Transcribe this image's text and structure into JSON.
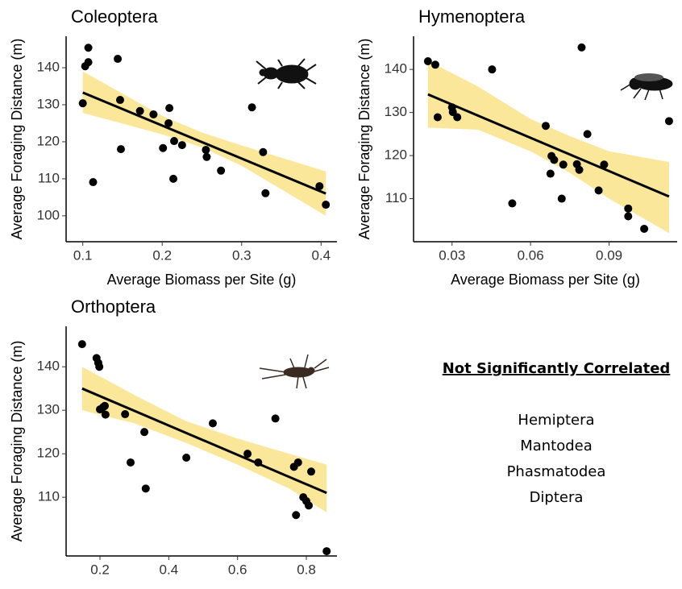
{
  "chart_data": [
    {
      "type": "scatter",
      "title": "Coleoptera",
      "x_label": "Average Biomass per Site (g)",
      "y_label": "Average Foraging Distance (m)",
      "x": [
        0.1,
        0.103,
        0.107,
        0.107,
        0.113,
        0.144,
        0.147,
        0.148,
        0.172,
        0.189,
        0.201,
        0.208,
        0.209,
        0.215,
        0.214,
        0.225,
        0.255,
        0.256,
        0.274,
        0.313,
        0.327,
        0.33,
        0.398,
        0.406
      ],
      "values": [
        130.4,
        140.4,
        145.4,
        141.5,
        109.1,
        142.4,
        131.3,
        118,
        128.3,
        127.4,
        118.3,
        125,
        129.1,
        120.2,
        110,
        119.1,
        117.8,
        115.9,
        112.2,
        129.3,
        117.2,
        106.1,
        108,
        103
      ],
      "color": "#000000",
      "fit": {
        "x": [
          0.1,
          0.406
        ],
        "values": [
          133.3,
          106
        ],
        "color": "#000000"
      },
      "band": {
        "x": [
          0.1,
          0.2,
          0.25,
          0.3,
          0.406
        ],
        "lower": [
          127.8,
          122,
          118.5,
          113.5,
          100
        ],
        "upper": [
          139,
          127,
          122.5,
          119,
          112
        ],
        "color": "#fbe79a"
      },
      "xlim": [
        0.079,
        0.42
      ],
      "ylim": [
        93,
        148.5
      ],
      "xticks": [
        0.1,
        0.2,
        0.3,
        0.4
      ],
      "yticks": [
        100,
        110,
        120,
        130,
        140
      ]
    },
    {
      "type": "scatter",
      "title": "Hymenoptera",
      "x_label": "Average Biomass per Site (g)",
      "y_label": "Average Foraging Distance (m)",
      "x": [
        0.0208,
        0.0236,
        0.0245,
        0.03,
        0.0303,
        0.032,
        0.0453,
        0.053,
        0.0658,
        0.0676,
        0.068,
        0.069,
        0.0719,
        0.0725,
        0.0777,
        0.0786,
        0.0795,
        0.0817,
        0.086,
        0.0881,
        0.0973,
        0.0973,
        0.1034,
        0.1129
      ],
      "values": [
        141.9,
        141.1,
        128.9,
        131.2,
        130.1,
        128.9,
        140,
        108.9,
        126.9,
        115.8,
        119.9,
        119,
        110,
        117.9,
        118,
        116.7,
        145.1,
        125,
        111.9,
        117.9,
        107.7,
        105.9,
        103,
        128
      ],
      "color": "#000000",
      "fit": {
        "x": [
          0.0208,
          0.1129
        ],
        "values": [
          134.2,
          110.5
        ],
        "color": "#000000"
      },
      "band": {
        "x": [
          0.0208,
          0.04,
          0.06,
          0.075,
          0.09,
          0.1129
        ],
        "lower": [
          126.5,
          126,
          121,
          116,
          110,
          102
        ],
        "upper": [
          142,
          136,
          128.5,
          124.5,
          121,
          118.5
        ],
        "color": "#fbe79a"
      },
      "xlim": [
        0.0153,
        0.116
      ],
      "ylim": [
        100,
        147.7
      ],
      "xticks": [
        0.03,
        0.06,
        0.09
      ],
      "yticks": [
        110,
        120,
        130,
        140
      ]
    },
    {
      "type": "scatter",
      "title": "Orthoptera",
      "x_label": "Average Biomass per Site (g)",
      "y_label": "Average Foraging Distance (m)",
      "x": [
        0.148,
        0.19,
        0.195,
        0.198,
        0.2,
        0.209,
        0.216,
        0.214,
        0.273,
        0.289,
        0.329,
        0.333,
        0.451,
        0.528,
        0.629,
        0.66,
        0.71,
        0.764,
        0.776,
        0.77,
        0.791,
        0.8,
        0.807,
        0.814,
        0.859
      ],
      "values": [
        145.2,
        142,
        140.9,
        140,
        130.2,
        130.7,
        129,
        131,
        129.1,
        118,
        125,
        112,
        119.1,
        127,
        120,
        118,
        128.1,
        117,
        118,
        105.9,
        110,
        109.1,
        108.1,
        115.9,
        97.6
      ],
      "color": "#000000",
      "fit": {
        "x": [
          0.148,
          0.859
        ],
        "values": [
          135,
          111
        ],
        "color": "#000000"
      },
      "band": {
        "x": [
          0.148,
          0.3,
          0.45,
          0.6,
          0.75,
          0.859
        ],
        "lower": [
          130,
          127,
          122.5,
          117.5,
          112,
          106.5
        ],
        "upper": [
          140,
          133.5,
          127.5,
          123.5,
          120,
          117.5
        ],
        "color": "#fbe79a"
      },
      "xlim": [
        0.1015,
        0.889
      ],
      "ylim": [
        96.5,
        149.3
      ],
      "xticks": [
        0.2,
        0.4,
        0.6,
        0.8
      ],
      "yticks": [
        110,
        120,
        130,
        140
      ]
    }
  ],
  "note": {
    "title": "Not Significantly Correlated",
    "items": [
      "Hemiptera",
      "Mantodea",
      "Phasmatodea",
      "Diptera"
    ]
  }
}
